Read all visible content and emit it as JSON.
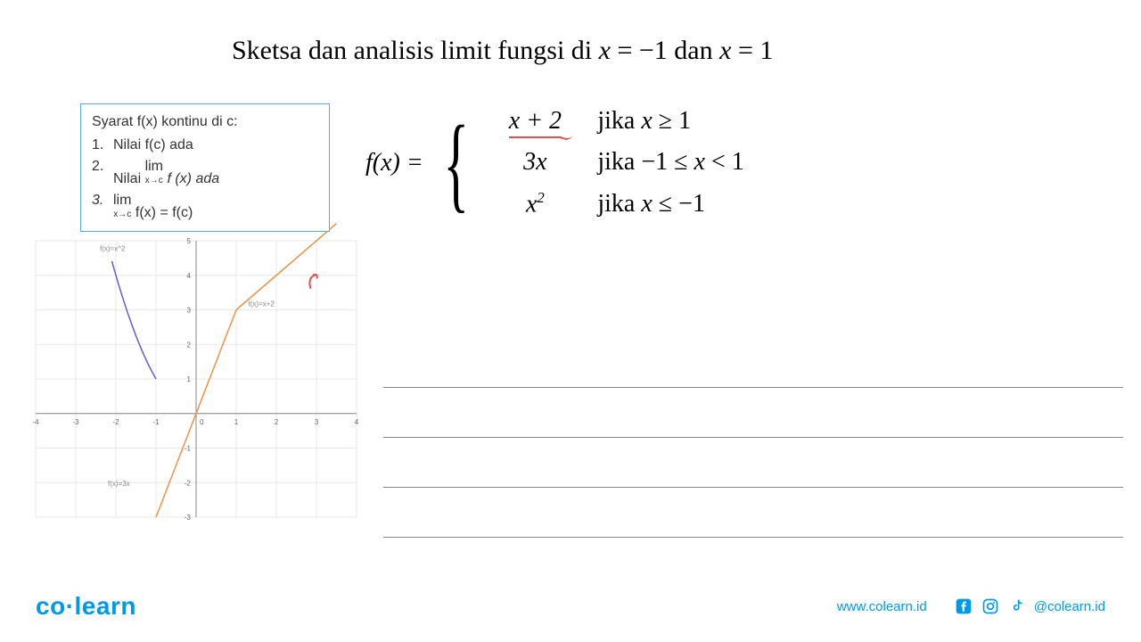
{
  "title_parts": {
    "t1": "Sketsa dan analisis limit fungsi di ",
    "x1": "x",
    "eq1": " = −1 dan ",
    "x2": "x",
    "eq2": " = 1"
  },
  "conditions": {
    "title": "Syarat f(x) kontinu di c:",
    "items": [
      {
        "num": "1.",
        "text": "Nilai f(c) ada"
      },
      {
        "num": "2.",
        "text_pre": "Nilai ",
        "lim": "lim",
        "sub": "x→c",
        "text_post": " f (x) ada"
      },
      {
        "num": "3.",
        "lim": "lim",
        "sub": "x→c",
        "eq": " f(x)  =  f(c)"
      }
    ]
  },
  "piecewise": {
    "fx": "f(x) = ",
    "rows": [
      {
        "expr": "x + 2",
        "cond_pre": "jika ",
        "cond_var": "x",
        "cond_rest": " ≥ 1",
        "underline": true
      },
      {
        "expr": "3x",
        "cond_pre": "jika −1 ≤ ",
        "cond_var": "x",
        "cond_rest": " < 1",
        "underline": false
      },
      {
        "expr_html": "x²",
        "cond_pre": "jika ",
        "cond_var": "x",
        "cond_rest": " ≤ −1",
        "underline": false
      }
    ]
  },
  "graph": {
    "xlim": [
      -4,
      4
    ],
    "ylim": [
      -3,
      5
    ],
    "xticks": [
      -4,
      -3,
      -2,
      -1,
      0,
      1,
      2,
      3,
      4
    ],
    "yticks": [
      -3,
      -2,
      -1,
      0,
      1,
      2,
      3,
      4,
      5
    ],
    "background_color": "#ffffff",
    "grid_color": "#e8e8e8",
    "axis_color": "#888",
    "curves": [
      {
        "name": "f(x)=x^2",
        "label": "f(x)=x^2",
        "label_pos": {
          "x": -2.4,
          "y": 4.7
        },
        "color": "#6b5bd1",
        "points": [
          [
            -2.1,
            4.41
          ],
          [
            -2.0,
            4.0
          ],
          [
            -1.9,
            3.61
          ],
          [
            -1.8,
            3.24
          ],
          [
            -1.7,
            2.89
          ],
          [
            -1.6,
            2.56
          ],
          [
            -1.5,
            2.25
          ],
          [
            -1.4,
            1.96
          ],
          [
            -1.3,
            1.69
          ],
          [
            -1.2,
            1.44
          ],
          [
            -1.1,
            1.21
          ],
          [
            -1.0,
            1.0
          ]
        ]
      },
      {
        "name": "f(x)=3x",
        "label": "f(x)=3x",
        "label_pos": {
          "x": -2.2,
          "y": -2.1
        },
        "color": "#e8944a",
        "points": [
          [
            -1,
            -3
          ],
          [
            1,
            3
          ]
        ]
      },
      {
        "name": "f(x)=x+2",
        "label": "f(x)=x+2",
        "label_pos": {
          "x": 1.3,
          "y": 3.1
        },
        "color": "#e8944a",
        "points": [
          [
            1,
            3
          ],
          [
            3.5,
            5.5
          ]
        ]
      }
    ],
    "tick_fontsize": 8,
    "label_fontsize": 8,
    "line_width": 1.5
  },
  "red_annot": "↷",
  "answer_lines_count": 4,
  "footer": {
    "logo": "co learn",
    "url": "www.colearn.id",
    "handle": "@colearn.id"
  }
}
